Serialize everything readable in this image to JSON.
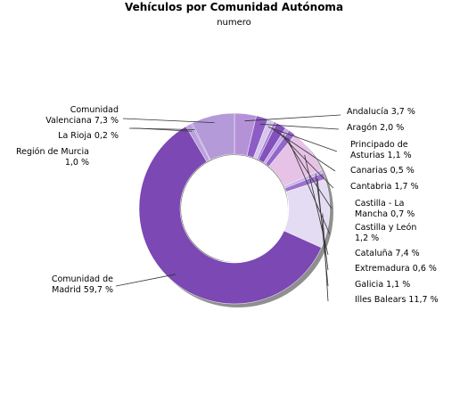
{
  "chart_data": {
    "type": "pie",
    "style": "donut",
    "title": "Vehículos por Comunidad Autónoma",
    "subtitle": "numero",
    "legend": "none",
    "slices": [
      {
        "name": "Andalucía",
        "label": "3,7 %",
        "value": 3.7,
        "color": "#b592d8"
      },
      {
        "name": "Aragón",
        "label": "2,0 %",
        "value": 2.0,
        "color": "#8d5cc4"
      },
      {
        "name": "Principado de Asturias",
        "label": "1,1 %",
        "value": 1.1,
        "color": "#d6c6ee"
      },
      {
        "name": "Canarias",
        "label": "0,5 %",
        "value": 0.5,
        "color": "#a87fd2"
      },
      {
        "name": "Cantabria",
        "label": "1,7 %",
        "value": 1.7,
        "color": "#8450bd"
      },
      {
        "name": "Castilla - La Mancha",
        "label": "0,7 %",
        "value": 0.7,
        "color": "#c4a8e4"
      },
      {
        "name": "Castilla y León",
        "label": "1,2 %",
        "value": 1.2,
        "color": "#9466c9"
      },
      {
        "name": "Cataluña",
        "label": "7,4 %",
        "value": 7.4,
        "color": "#e6c2e6"
      },
      {
        "name": "Extremadura",
        "label": "0,6 %",
        "value": 0.6,
        "color": "#c8b0e8"
      },
      {
        "name": "Galicia",
        "label": "1,1 %",
        "value": 1.1,
        "color": "#9c72cc"
      },
      {
        "name": "Illes Balears",
        "label": "11,7 %",
        "value": 11.7,
        "color": "#e4dcf2"
      },
      {
        "name": "Comunidad de Madrid",
        "label": "59,7 %",
        "value": 59.7,
        "color": "#7b48b4"
      },
      {
        "name": "Región de Murcia",
        "label": "1,0 %",
        "value": 1.0,
        "color": "#bba0dd"
      },
      {
        "name": "La Rioja",
        "label": "0,2 %",
        "value": 0.2,
        "color": "#9a6fce"
      },
      {
        "name": "Comunidad Valenciana",
        "label": "7,3 %",
        "value": 7.3,
        "color": "#b49ad8"
      }
    ]
  }
}
